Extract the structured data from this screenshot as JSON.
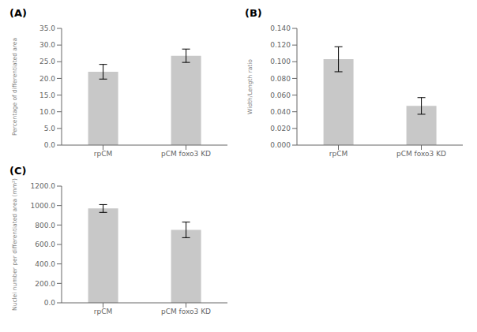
{
  "chart_data": [
    {
      "type": "bar",
      "title": "(A)",
      "categories": [
        "rpCM",
        "pCM foxo3 KD"
      ],
      "values": [
        22.0,
        26.8
      ],
      "errors": [
        2.2,
        2.0
      ],
      "ylabel": "Percentage of differentiated area",
      "ylim": [
        0,
        35.0
      ],
      "yticks": [
        {
          "value": 0.0,
          "label": "0.0"
        },
        {
          "value": 5.0,
          "label": "5.0"
        },
        {
          "value": 10.0,
          "label": "10.0"
        },
        {
          "value": 15.0,
          "label": "15.0"
        },
        {
          "value": 20.0,
          "label": "20.0"
        },
        {
          "value": 25.0,
          "label": "25.0"
        },
        {
          "value": 30.0,
          "label": "30.0"
        },
        {
          "value": 35.0,
          "label": "35.0"
        }
      ],
      "color": "#c8c8c8",
      "grid": false
    },
    {
      "type": "bar",
      "title": "(B)",
      "categories": [
        "rpCM",
        "pCM foxo3 KD"
      ],
      "values": [
        0.103,
        0.047
      ],
      "errors": [
        0.015,
        0.01
      ],
      "ylabel": "Width/Length ratio",
      "ylim": [
        0,
        0.14
      ],
      "yticks": [
        {
          "value": 0.0,
          "label": "0.000"
        },
        {
          "value": 0.02,
          "label": "0.020"
        },
        {
          "value": 0.04,
          "label": "0.040"
        },
        {
          "value": 0.06,
          "label": "0.060"
        },
        {
          "value": 0.08,
          "label": "0.080"
        },
        {
          "value": 0.1,
          "label": "0.100"
        },
        {
          "value": 0.12,
          "label": "0.120"
        },
        {
          "value": 0.14,
          "label": "0.140"
        }
      ],
      "color": "#c8c8c8",
      "grid": false
    },
    {
      "type": "bar",
      "title": "(C)",
      "categories": [
        "rpCM",
        "pCM foxo3 KD"
      ],
      "values": [
        970.0,
        750.0
      ],
      "errors": [
        40.0,
        80.0
      ],
      "ylabel": "Nuclei number per differentiated area (mm²)",
      "ylim": [
        0,
        1200.0
      ],
      "yticks": [
        {
          "value": 0.0,
          "label": "0.0"
        },
        {
          "value": 200.0,
          "label": "200.0"
        },
        {
          "value": 400.0,
          "label": "400.0"
        },
        {
          "value": 600.0,
          "label": "600.0"
        },
        {
          "value": 800.0,
          "label": "800.0"
        },
        {
          "value": 1000.0,
          "label": "1000.0"
        },
        {
          "value": 1200.0,
          "label": "1200.0"
        }
      ],
      "color": "#c8c8c8",
      "grid": false
    }
  ]
}
